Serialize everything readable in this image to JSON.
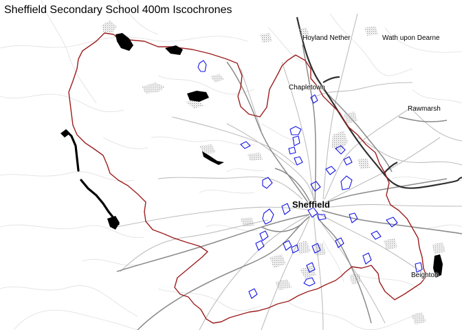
{
  "map": {
    "title": "Sheffield Secondary School 400m Iscochrones",
    "colors": {
      "background": "#ffffff",
      "boundary": "#9b1c1c",
      "isochrone": "#1414e6",
      "motorway": "#2f2f2f",
      "major_road": "#8a8a8a",
      "minor_road": "#dedede",
      "water": "#000000",
      "woodland": "#b3b3b3"
    },
    "places": [
      {
        "id": "hoyland-nether",
        "label": "Hoyland Nether"
      },
      {
        "id": "wath-upon-dearne",
        "label": "Wath upon Dearne"
      },
      {
        "id": "chapeltown",
        "label": "Chapletown"
      },
      {
        "id": "rawmarsh",
        "label": "Rawmarsh"
      },
      {
        "id": "sheffield",
        "label": "Sheffield"
      },
      {
        "id": "beighton",
        "label": "Beighton"
      }
    ],
    "layers": [
      "roads",
      "city-boundary",
      "water",
      "woodland",
      "isochrones"
    ],
    "isochrone_count": 31
  }
}
